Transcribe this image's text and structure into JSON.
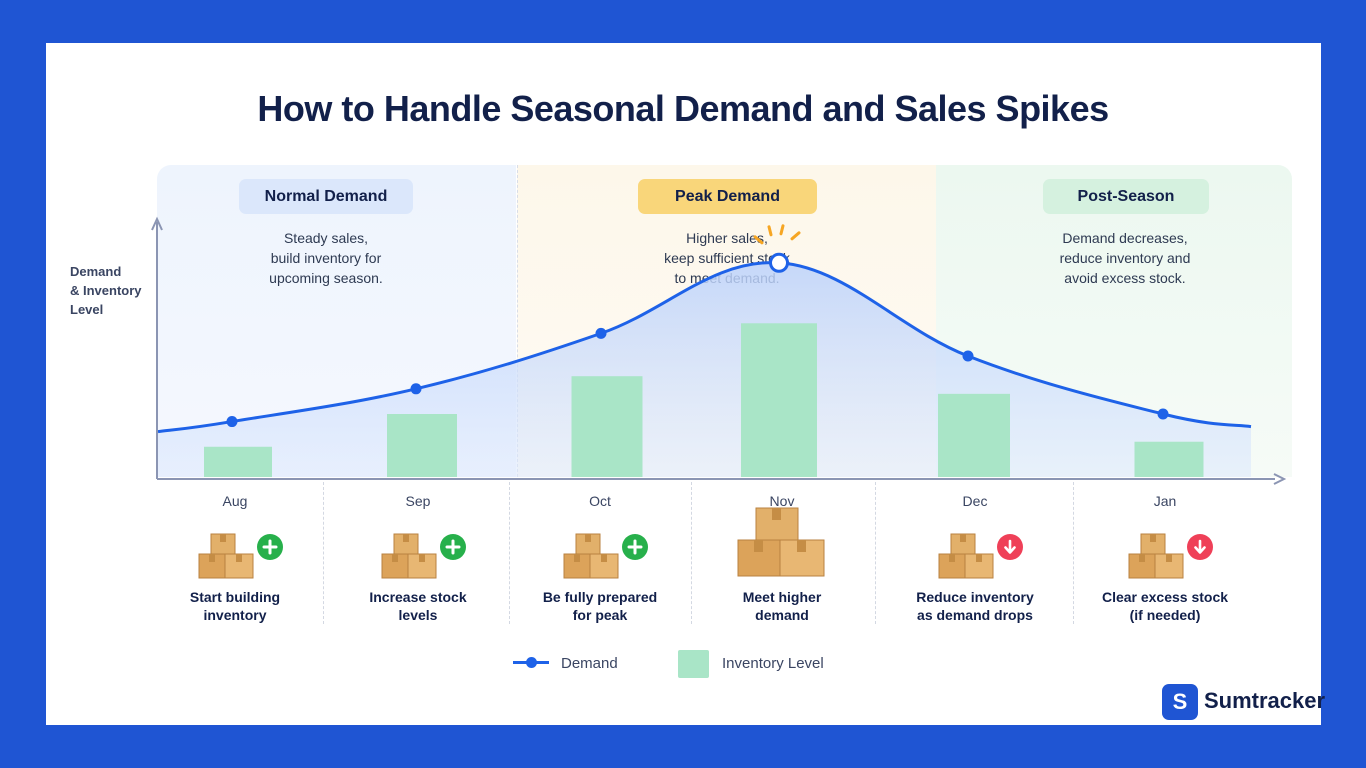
{
  "title": "How to Handle Seasonal Demand and Sales Spikes",
  "y_axis_label": [
    "Demand",
    "& Inventory",
    "Level"
  ],
  "zones": {
    "normal": {
      "label": "Normal Demand",
      "desc": [
        "Steady sales,",
        "build inventory for",
        "upcoming season."
      ],
      "color": "#dbe7fb"
    },
    "peak": {
      "label": "Peak Demand",
      "desc": [
        "Higher sales,",
        "keep sufficient stock",
        "to meet demand."
      ],
      "color": "#f9d67a"
    },
    "post": {
      "label": "Post-Season",
      "desc": [
        "Demand decreases,",
        "reduce inventory and",
        "avoid excess stock."
      ],
      "color": "#d5f1df"
    }
  },
  "months": [
    {
      "label": "Aug",
      "action": [
        "Start building",
        "inventory"
      ],
      "icon": "plus-icon"
    },
    {
      "label": "Sep",
      "action": [
        "Increase stock",
        "levels"
      ],
      "icon": "plus-icon"
    },
    {
      "label": "Oct",
      "action": [
        "Be fully prepared",
        "for peak"
      ],
      "icon": "plus-icon"
    },
    {
      "label": "Nov",
      "action": [
        "Meet higher",
        "demand"
      ],
      "icon": ""
    },
    {
      "label": "Dec",
      "action": [
        "Reduce inventory",
        "as demand drops"
      ],
      "icon": "arrow-down-icon"
    },
    {
      "label": "Jan",
      "action": [
        "Clear excess stock",
        "(if needed)"
      ],
      "icon": "arrow-down-icon"
    }
  ],
  "chart_data": {
    "type": "line",
    "categories": [
      "Aug",
      "Sep",
      "Oct",
      "Nov",
      "Dec",
      "Jan"
    ],
    "series": [
      {
        "name": "Demand",
        "type": "line",
        "values": [
          22,
          35,
          57,
          85,
          48,
          25
        ],
        "color": "#1e62e8"
      },
      {
        "name": "Inventory Level",
        "type": "bar",
        "values": [
          12,
          25,
          40,
          61,
          33,
          14
        ],
        "color": "#a9e5c7"
      }
    ],
    "ylim": [
      0,
      100
    ],
    "peak_category": "Nov",
    "xlabel": "",
    "ylabel": "Demand & Inventory Level",
    "legend_position": "bottom"
  },
  "legend": {
    "demand": "Demand",
    "inventory": "Inventory Level"
  },
  "brand": {
    "letter": "S",
    "name": "Sumtracker"
  },
  "colors": {
    "background": "#1f55d3",
    "accent": "#1e62e8",
    "plus": "#27b04b",
    "minus": "#ef4058",
    "box": "#d9a45a"
  }
}
